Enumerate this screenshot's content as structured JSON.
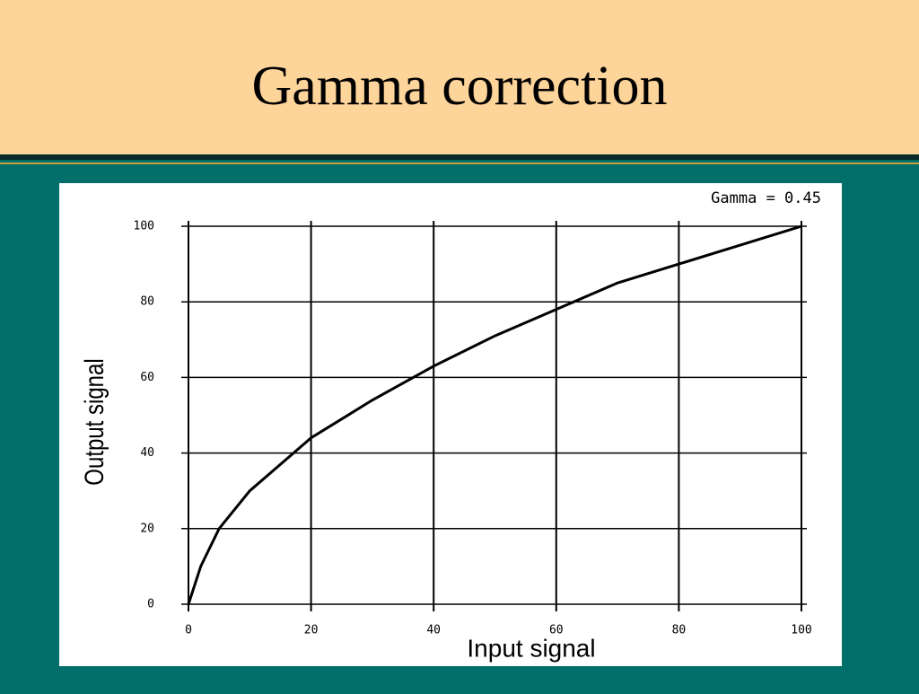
{
  "slide_title": "Gamma correction",
  "chart_data": {
    "type": "line",
    "annotation": "Gamma = 0.45",
    "xlabel": "Input signal",
    "ylabel": "Output signal",
    "x": [
      0,
      2,
      5,
      10,
      20,
      30,
      40,
      50,
      60,
      70,
      80,
      90,
      100
    ],
    "values": [
      0,
      10,
      20,
      30,
      44,
      54,
      63,
      71,
      78,
      85,
      90,
      95,
      100
    ],
    "color": "#000000",
    "xlim": [
      0,
      100
    ],
    "ylim": [
      0,
      100
    ],
    "xticks": [
      0,
      20,
      40,
      60,
      80,
      100
    ],
    "yticks": [
      0,
      20,
      40,
      60,
      80,
      100
    ],
    "grid": true
  }
}
